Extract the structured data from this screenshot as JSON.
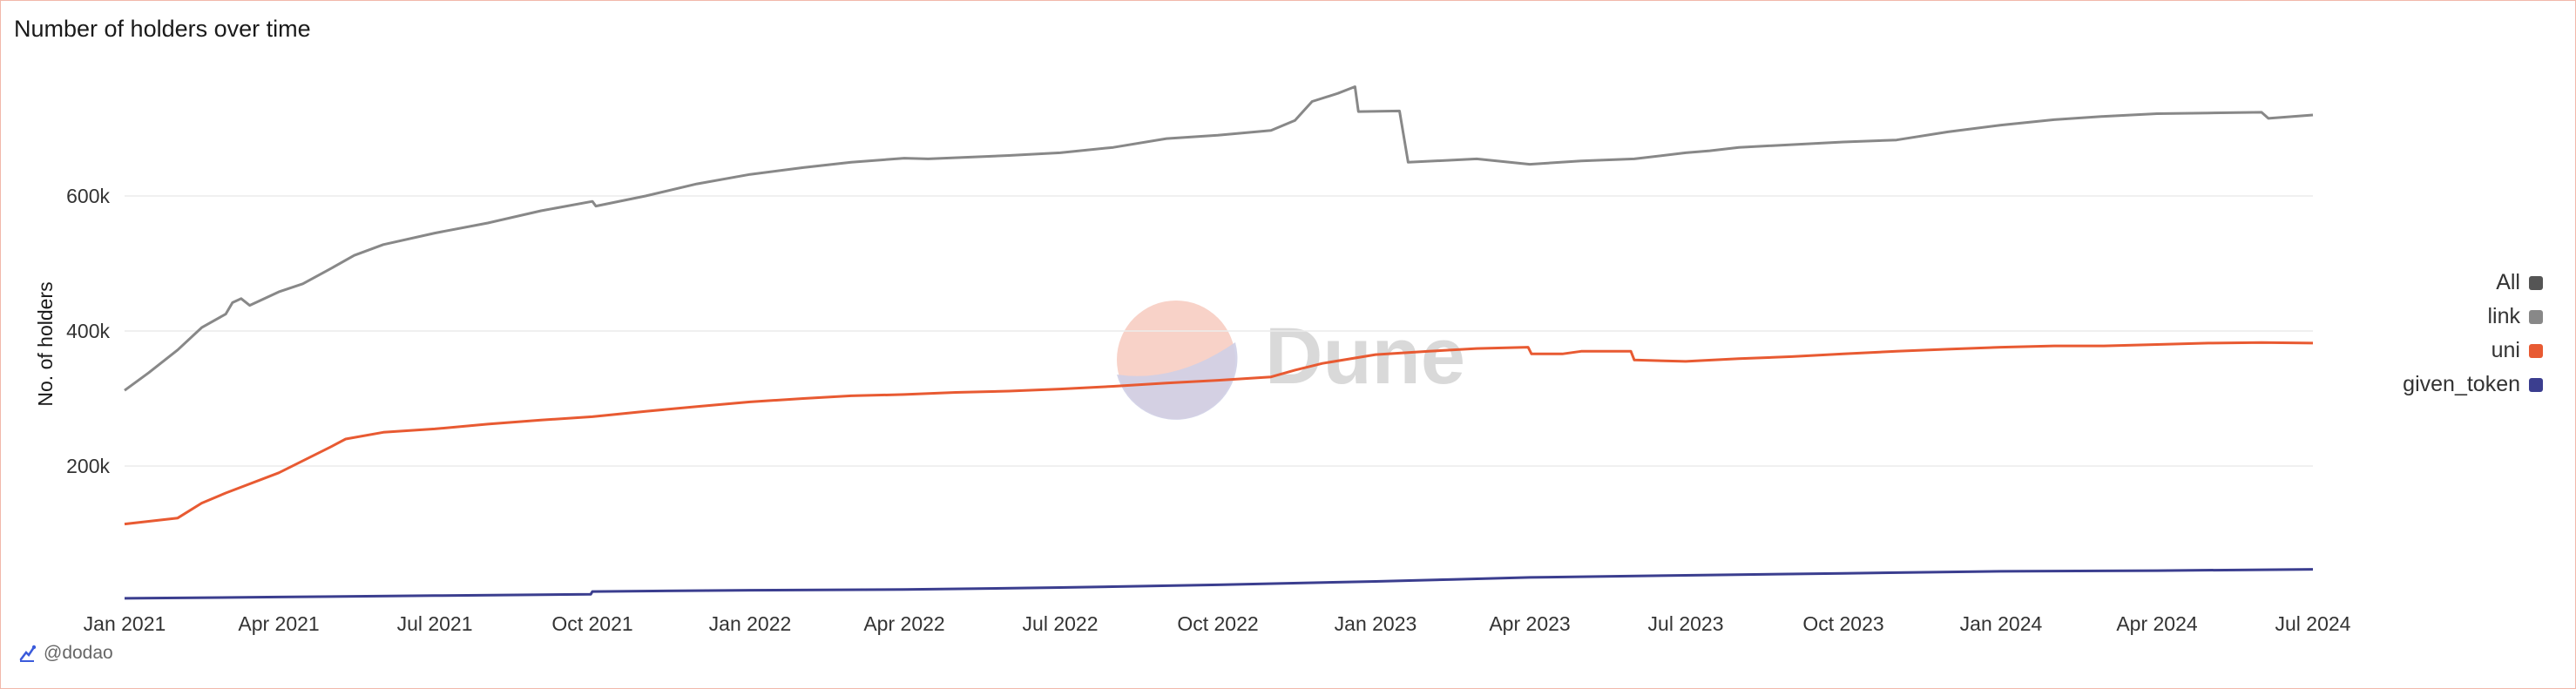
{
  "title": "Number of holders over time",
  "footer": {
    "icon": "dune-spark-icon",
    "user": "@dodao"
  },
  "watermark": {
    "text": "Dune",
    "colors": [
      "#f8c9bd",
      "#c6c6e0"
    ]
  },
  "legend": {
    "items": [
      {
        "label": "All",
        "color": "#555555"
      },
      {
        "label": "link",
        "color": "#888888"
      },
      {
        "label": "uni",
        "color": "#e85a32"
      },
      {
        "label": "given_token",
        "color": "#3b3e8f"
      }
    ]
  },
  "chart_data": {
    "type": "line",
    "title": "Number of holders over time",
    "xlabel": "",
    "ylabel": "No. of holders",
    "x_ticks": [
      "Jan 2021",
      "Apr 2021",
      "Jul 2021",
      "Oct 2021",
      "Jan 2022",
      "Apr 2022",
      "Jul 2022",
      "Oct 2022",
      "Jan 2023",
      "Apr 2023",
      "Jul 2023",
      "Oct 2023",
      "Jan 2024",
      "Apr 2024",
      "Jul 2024"
    ],
    "y_ticks": [
      {
        "value": 200000,
        "label": "200k"
      },
      {
        "value": 400000,
        "label": "400k"
      },
      {
        "value": 600000,
        "label": "600k"
      }
    ],
    "ylim": [
      0,
      800000
    ],
    "grid": true,
    "legend_position": "right",
    "series": [
      {
        "name": "link",
        "color": "#888888",
        "points": [
          [
            "2021-01-01",
            312000
          ],
          [
            "2021-01-15",
            338000
          ],
          [
            "2021-02-01",
            372000
          ],
          [
            "2021-02-15",
            405000
          ],
          [
            "2021-03-01",
            425000
          ],
          [
            "2021-03-05",
            442000
          ],
          [
            "2021-03-10",
            448000
          ],
          [
            "2021-03-15",
            438000
          ],
          [
            "2021-04-01",
            458000
          ],
          [
            "2021-04-15",
            470000
          ],
          [
            "2021-05-01",
            492000
          ],
          [
            "2021-05-15",
            512000
          ],
          [
            "2021-06-01",
            528000
          ],
          [
            "2021-07-01",
            545000
          ],
          [
            "2021-08-01",
            560000
          ],
          [
            "2021-09-01",
            578000
          ],
          [
            "2021-10-01",
            592000
          ],
          [
            "2021-10-03",
            585000
          ],
          [
            "2021-11-01",
            600000
          ],
          [
            "2021-12-01",
            618000
          ],
          [
            "2022-01-01",
            632000
          ],
          [
            "2022-02-01",
            642000
          ],
          [
            "2022-03-01",
            650000
          ],
          [
            "2022-04-01",
            656000
          ],
          [
            "2022-04-15",
            655000
          ],
          [
            "2022-06-01",
            660000
          ],
          [
            "2022-07-01",
            664000
          ],
          [
            "2022-08-01",
            672000
          ],
          [
            "2022-09-01",
            685000
          ],
          [
            "2022-10-01",
            690000
          ],
          [
            "2022-11-01",
            697000
          ],
          [
            "2022-11-15",
            712000
          ],
          [
            "2022-11-25",
            740000
          ],
          [
            "2022-12-10",
            752000
          ],
          [
            "2022-12-20",
            762000
          ],
          [
            "2022-12-22",
            725000
          ],
          [
            "2023-01-15",
            726000
          ],
          [
            "2023-01-20",
            650000
          ],
          [
            "2023-03-01",
            655000
          ],
          [
            "2023-04-01",
            647000
          ],
          [
            "2023-05-01",
            652000
          ],
          [
            "2023-06-01",
            655000
          ],
          [
            "2023-07-01",
            664000
          ],
          [
            "2023-07-15",
            667000
          ],
          [
            "2023-08-01",
            672000
          ],
          [
            "2023-10-01",
            680000
          ],
          [
            "2023-11-01",
            683000
          ],
          [
            "2023-12-01",
            695000
          ],
          [
            "2024-01-01",
            705000
          ],
          [
            "2024-02-01",
            713000
          ],
          [
            "2024-03-01",
            718000
          ],
          [
            "2024-04-01",
            722000
          ],
          [
            "2024-05-01",
            723000
          ],
          [
            "2024-06-01",
            724000
          ],
          [
            "2024-06-05",
            715000
          ],
          [
            "2024-07-01",
            720000
          ]
        ]
      },
      {
        "name": "uni",
        "color": "#e85a32",
        "points": [
          [
            "2021-01-01",
            114000
          ],
          [
            "2021-02-01",
            123000
          ],
          [
            "2021-02-15",
            145000
          ],
          [
            "2021-03-01",
            160000
          ],
          [
            "2021-04-01",
            190000
          ],
          [
            "2021-05-01",
            228000
          ],
          [
            "2021-05-10",
            240000
          ],
          [
            "2021-06-01",
            250000
          ],
          [
            "2021-07-01",
            255000
          ],
          [
            "2021-08-01",
            262000
          ],
          [
            "2021-09-01",
            268000
          ],
          [
            "2021-10-01",
            273000
          ],
          [
            "2021-11-01",
            281000
          ],
          [
            "2021-12-01",
            288000
          ],
          [
            "2022-01-01",
            295000
          ],
          [
            "2022-02-01",
            300000
          ],
          [
            "2022-03-01",
            304000
          ],
          [
            "2022-04-01",
            306000
          ],
          [
            "2022-05-01",
            309000
          ],
          [
            "2022-06-01",
            311000
          ],
          [
            "2022-07-01",
            314000
          ],
          [
            "2022-08-01",
            318000
          ],
          [
            "2022-09-01",
            323000
          ],
          [
            "2022-10-01",
            327000
          ],
          [
            "2022-11-01",
            332000
          ],
          [
            "2022-11-15",
            342000
          ],
          [
            "2022-12-01",
            352000
          ],
          [
            "2023-01-01",
            365000
          ],
          [
            "2023-02-01",
            370000
          ],
          [
            "2023-03-01",
            374000
          ],
          [
            "2023-03-31",
            376000
          ],
          [
            "2023-04-02",
            366000
          ],
          [
            "2023-04-20",
            366000
          ],
          [
            "2023-05-01",
            370000
          ],
          [
            "2023-05-30",
            370000
          ],
          [
            "2023-06-01",
            357000
          ],
          [
            "2023-07-01",
            355000
          ],
          [
            "2023-08-01",
            359000
          ],
          [
            "2023-09-01",
            362000
          ],
          [
            "2023-10-01",
            366000
          ],
          [
            "2023-11-01",
            370000
          ],
          [
            "2023-12-01",
            373000
          ],
          [
            "2024-01-01",
            376000
          ],
          [
            "2024-02-01",
            378000
          ],
          [
            "2024-03-01",
            378000
          ],
          [
            "2024-04-01",
            380000
          ],
          [
            "2024-05-01",
            382000
          ],
          [
            "2024-06-01",
            383000
          ],
          [
            "2024-07-01",
            382000
          ]
        ]
      },
      {
        "name": "given_token",
        "color": "#3b3e8f",
        "points": [
          [
            "2021-01-01",
            4000
          ],
          [
            "2021-04-01",
            6000
          ],
          [
            "2021-07-01",
            8000
          ],
          [
            "2021-09-30",
            10000
          ],
          [
            "2021-10-01",
            14000
          ],
          [
            "2022-01-01",
            16000
          ],
          [
            "2022-04-01",
            17000
          ],
          [
            "2022-07-01",
            20000
          ],
          [
            "2022-10-01",
            24000
          ],
          [
            "2023-01-01",
            29000
          ],
          [
            "2023-02-15",
            32000
          ],
          [
            "2023-04-01",
            35000
          ],
          [
            "2023-07-01",
            38000
          ],
          [
            "2023-10-01",
            41000
          ],
          [
            "2024-01-01",
            44000
          ],
          [
            "2024-04-01",
            45000
          ],
          [
            "2024-07-01",
            47000
          ]
        ]
      }
    ]
  }
}
